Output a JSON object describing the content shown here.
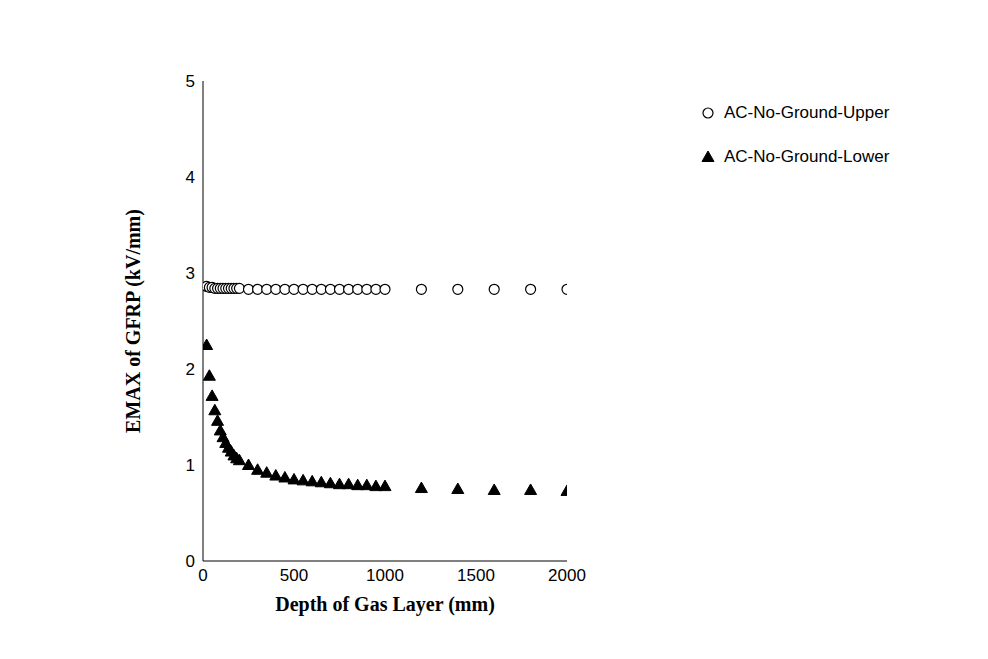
{
  "chart_data": {
    "type": "scatter",
    "x_label": "Depth of Gas Layer (mm)",
    "y_label": "EMAX of GFRP (kV/mm)",
    "xlim": [
      0,
      2000
    ],
    "xticks": [
      0,
      500,
      1000,
      1500,
      2000
    ],
    "ylim": [
      0,
      5
    ],
    "yticks": [
      0,
      1,
      2,
      3,
      4,
      5
    ],
    "grid": false,
    "legend": "top-right",
    "x": [
      20,
      35,
      50,
      65,
      80,
      95,
      110,
      125,
      140,
      155,
      170,
      185,
      200,
      250,
      300,
      350,
      400,
      450,
      500,
      550,
      600,
      650,
      700,
      750,
      800,
      850,
      900,
      950,
      1000,
      1200,
      1400,
      1600,
      1800,
      2000
    ],
    "series": [
      {
        "name": "AC-No-Ground-Upper",
        "color": "#000000",
        "marker": "open-circle",
        "values": [
          2.86,
          2.85,
          2.85,
          2.84,
          2.84,
          2.84,
          2.84,
          2.84,
          2.84,
          2.84,
          2.84,
          2.84,
          2.84,
          2.83,
          2.83,
          2.83,
          2.83,
          2.83,
          2.83,
          2.83,
          2.83,
          2.83,
          2.83,
          2.83,
          2.83,
          2.83,
          2.83,
          2.83,
          2.83,
          2.83,
          2.83,
          2.83,
          2.83,
          2.83
        ]
      },
      {
        "name": "AC-No-Ground-Lower",
        "color": "#000000",
        "marker": "triangle",
        "values": [
          2.25,
          1.93,
          1.72,
          1.57,
          1.46,
          1.36,
          1.29,
          1.23,
          1.18,
          1.14,
          1.1,
          1.07,
          1.05,
          1.0,
          0.95,
          0.92,
          0.89,
          0.87,
          0.85,
          0.84,
          0.83,
          0.82,
          0.81,
          0.8,
          0.8,
          0.79,
          0.79,
          0.78,
          0.78,
          0.76,
          0.75,
          0.74,
          0.74,
          0.73
        ]
      }
    ]
  }
}
